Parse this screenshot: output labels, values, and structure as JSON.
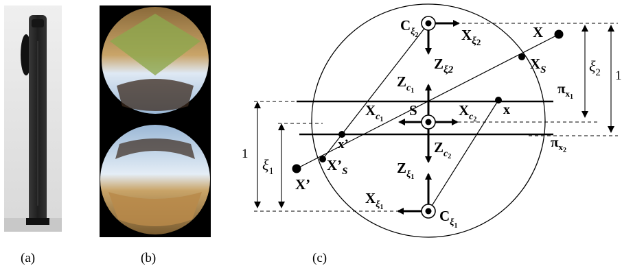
{
  "captions": {
    "a": "(a)",
    "b": "(b)",
    "c": "(c)"
  },
  "diagram": {
    "C_xi2": {
      "base": "C",
      "sub": "ξ",
      "subsub": "2"
    },
    "X_xi2": {
      "base": "X",
      "sub": "ξ",
      "subsub": "2"
    },
    "Z_xi2": {
      "base": "Z",
      "sub": "ξ2"
    },
    "Z_c1": {
      "base": "Z",
      "sub": "c",
      "subsub": "1"
    },
    "X_c1": {
      "base": "X",
      "sub": "c",
      "subsub": "1"
    },
    "S": "S",
    "X_c2": {
      "base": "X",
      "sub": "c",
      "subsub": "2"
    },
    "x": "x",
    "X": "X",
    "X_S": {
      "base": "X",
      "sub": "S"
    },
    "pi_x1": {
      "base": "π",
      "sub": "x",
      "subsub": "1"
    },
    "pi_x2": {
      "base": "π",
      "sub": "x",
      "subsub": "2"
    },
    "x_prime": "x’",
    "Xp": "X’",
    "Xp_S": {
      "base": "X’",
      "sub": "S"
    },
    "Z_c2": {
      "base": "Z",
      "sub": "c",
      "subsub": "2"
    },
    "Z_xi1": {
      "base": "Z",
      "sub": "ξ",
      "subsub": "1"
    },
    "X_xi1": {
      "base": "X",
      "sub": "ξ",
      "subsub": "1"
    },
    "C_xi1": {
      "base": "C",
      "sub": "ξ",
      "subsub": "1"
    },
    "xi2": {
      "base": "ξ",
      "sub": "2"
    },
    "xi1": {
      "base": "ξ",
      "sub": "1"
    },
    "one_right": "1",
    "one_left": "1"
  },
  "colors": {
    "ink": "#000000",
    "camera_body": "#2a2a2a",
    "sky": "#bcd3ea",
    "field": "#c9a468"
  }
}
